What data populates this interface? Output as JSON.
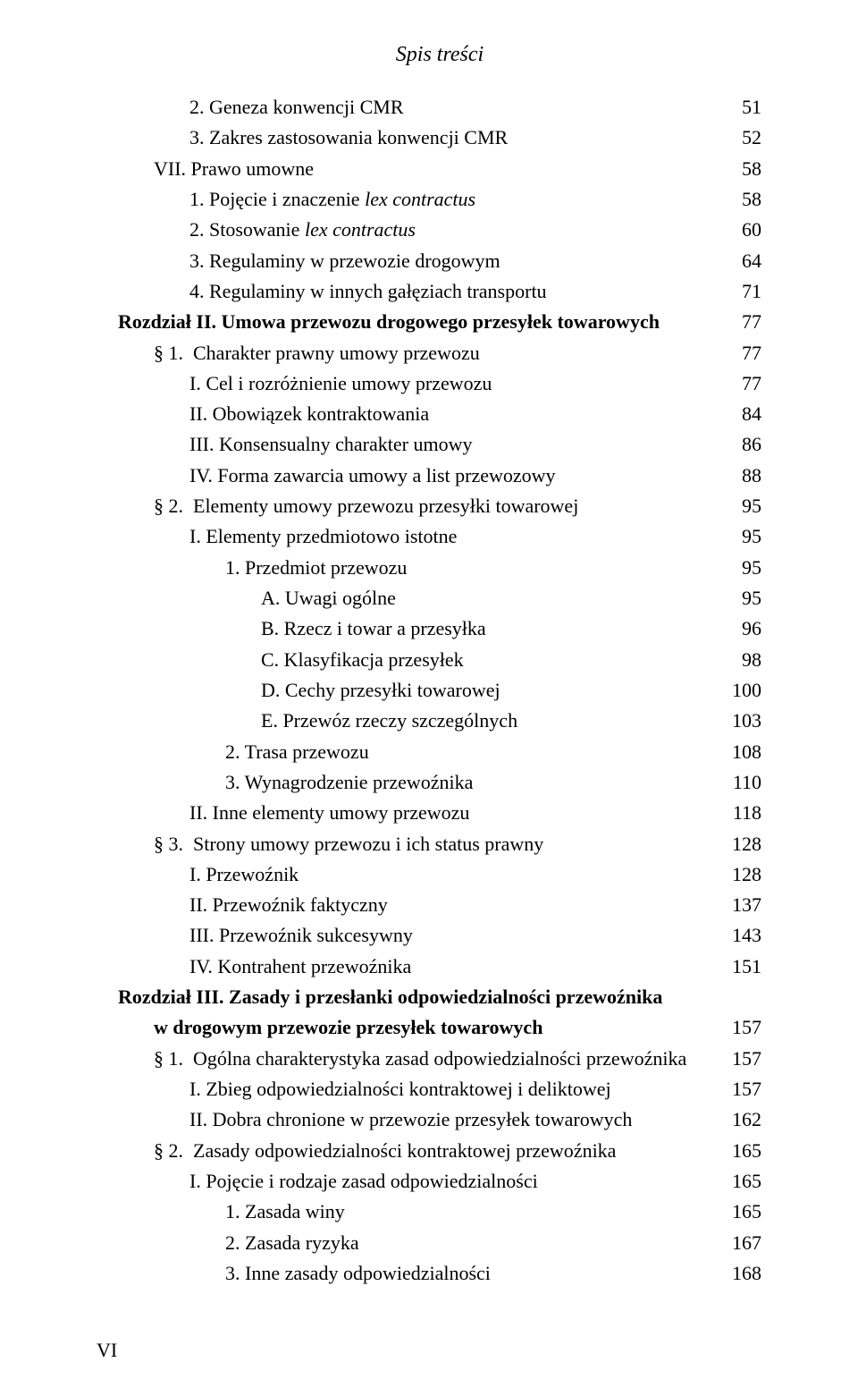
{
  "runningHead": "Spis treści",
  "folio": "VI",
  "entries": [
    {
      "indent": 2,
      "label": "2. Geneza konwencji CMR",
      "page": "51"
    },
    {
      "indent": 2,
      "label": "3. Zakres zastosowania konwencji CMR",
      "page": "52"
    },
    {
      "indent": 1,
      "label": "VII. Prawo umowne",
      "page": "58"
    },
    {
      "indent": 2,
      "label": "1. Pojęcie i znaczenie ",
      "italicTail": "lex contractus",
      "page": "58"
    },
    {
      "indent": 2,
      "label": "2. Stosowanie ",
      "italicTail": "lex contractus",
      "page": "60"
    },
    {
      "indent": 2,
      "label": "3. Regulaminy w przewozie drogowym",
      "page": "64"
    },
    {
      "indent": 2,
      "label": "4. Regulaminy w innych gałęziach transportu",
      "page": "71"
    },
    {
      "indent": 0,
      "bold": true,
      "label": "Rozdział II. Umowa przewozu drogowego przesyłek towarowych",
      "page": "77"
    },
    {
      "indent": 1,
      "label": "§ 1. Charakter prawny umowy przewozu",
      "page": "77"
    },
    {
      "indent": 2,
      "label": "I. Cel i rozróżnienie umowy przewozu",
      "page": "77"
    },
    {
      "indent": 2,
      "label": "II. Obowiązek kontraktowania",
      "page": "84"
    },
    {
      "indent": 2,
      "label": "III. Konsensualny charakter umowy",
      "page": "86"
    },
    {
      "indent": 2,
      "label": "IV. Forma zawarcia umowy a list przewozowy",
      "page": "88"
    },
    {
      "indent": 1,
      "label": "§ 2. Elementy umowy przewozu przesyłki towarowej",
      "page": "95"
    },
    {
      "indent": 2,
      "label": "I. Elementy przedmiotowo istotne",
      "page": "95"
    },
    {
      "indent": 3,
      "label": "1. Przedmiot przewozu",
      "page": "95"
    },
    {
      "indent": 4,
      "label": "A. Uwagi ogólne",
      "page": "95"
    },
    {
      "indent": 4,
      "label": "B. Rzecz i towar a przesyłka",
      "page": "96"
    },
    {
      "indent": 4,
      "label": "C. Klasyfikacja przesyłek",
      "page": "98"
    },
    {
      "indent": 4,
      "label": "D. Cechy przesyłki towarowej",
      "page": "100"
    },
    {
      "indent": 4,
      "label": "E. Przewóz rzeczy szczególnych",
      "page": "103"
    },
    {
      "indent": 3,
      "label": "2. Trasa przewozu",
      "page": "108"
    },
    {
      "indent": 3,
      "label": "3. Wynagrodzenie przewoźnika",
      "page": "110"
    },
    {
      "indent": 2,
      "label": "II. Inne elementy umowy przewozu",
      "page": "118"
    },
    {
      "indent": 1,
      "label": "§ 3. Strony umowy przewozu i ich status prawny",
      "page": "128"
    },
    {
      "indent": 2,
      "label": "I. Przewoźnik",
      "page": "128"
    },
    {
      "indent": 2,
      "label": "II. Przewoźnik faktyczny",
      "page": "137"
    },
    {
      "indent": 2,
      "label": "III. Przewoźnik sukcesywny",
      "page": "143"
    },
    {
      "indent": 2,
      "label": "IV. Kontrahent przewoźnika",
      "page": "151"
    },
    {
      "indent": 0,
      "bold": true,
      "multiline": true,
      "labelLines": [
        "Rozdział III. Zasady i przesłanki odpowiedzialności przewoźnika",
        "w drogowym przewozie przesyłek towarowych"
      ],
      "page": "157"
    },
    {
      "indent": 1,
      "label": "§ 1. Ogólna charakterystyka zasad odpowiedzialności przewoźnika",
      "page": "157"
    },
    {
      "indent": 2,
      "label": "I. Zbieg odpowiedzialności kontraktowej i deliktowej",
      "page": "157"
    },
    {
      "indent": 2,
      "label": "II. Dobra chronione w przewozie przesyłek towarowych",
      "page": "162"
    },
    {
      "indent": 1,
      "label": "§ 2. Zasady odpowiedzialności kontraktowej przewoźnika",
      "page": "165"
    },
    {
      "indent": 2,
      "label": "I. Pojęcie i rodzaje zasad odpowiedzialności",
      "page": "165"
    },
    {
      "indent": 3,
      "label": "1. Zasada winy",
      "page": "165"
    },
    {
      "indent": 3,
      "label": "2. Zasada ryzyka",
      "page": "167"
    },
    {
      "indent": 3,
      "label": "3. Inne zasady odpowiedzialności",
      "page": "168"
    }
  ]
}
